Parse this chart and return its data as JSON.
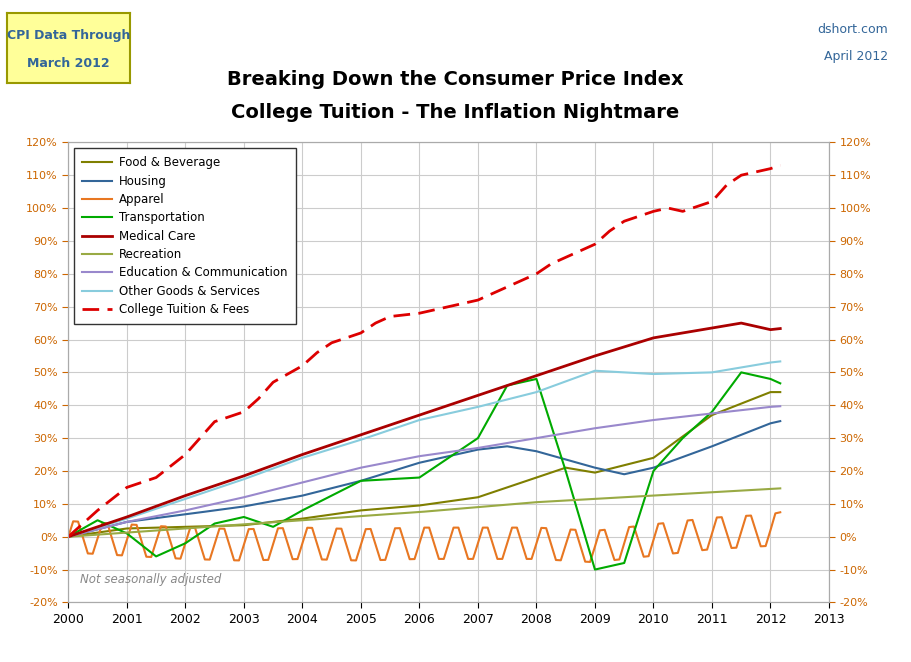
{
  "title1": "Breaking Down the Consumer Price Index",
  "title2": "College Tuition - The Inflation Nightmare",
  "subtitle_left_line1": "CPI Data Through",
  "subtitle_left_line2": "March 2012",
  "note": "Not seasonally adjusted",
  "ylim": [
    -20,
    120
  ],
  "yticks": [
    -20,
    -10,
    0,
    10,
    20,
    30,
    40,
    50,
    60,
    70,
    80,
    90,
    100,
    110,
    120
  ],
  "xlim_start": 2000.0,
  "xlim_end": 2013.0,
  "xticks": [
    2000,
    2001,
    2002,
    2003,
    2004,
    2005,
    2006,
    2007,
    2008,
    2009,
    2010,
    2011,
    2012,
    2013
  ],
  "bg_color": "#ffffff",
  "grid_color": "#cccccc",
  "tick_color_y": "#cc6600",
  "box_bg": "#ffff99",
  "box_border": "#999900",
  "box_text_color": "#336699",
  "right_text_color": "#336699",
  "note_color": "#888888"
}
